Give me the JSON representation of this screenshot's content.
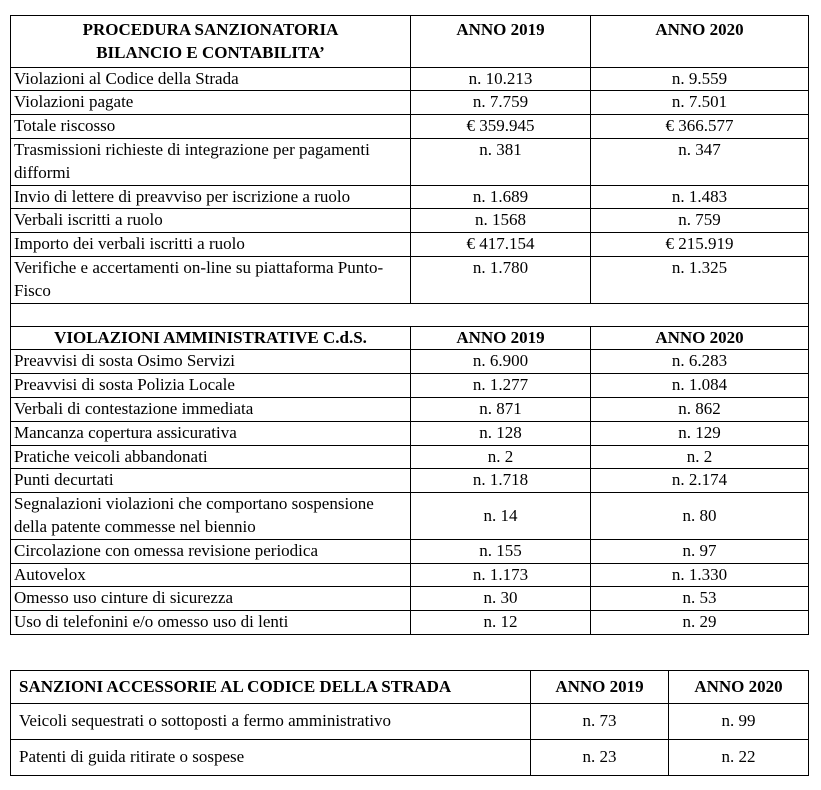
{
  "table1": {
    "sections": [
      {
        "header": [
          "PROCEDURA SANZIONATORIA\nBILANCIO E CONTABILITA’",
          "ANNO 2019",
          "ANNO 2020"
        ],
        "rows": [
          [
            "Violazioni al Codice della Strada",
            "n. 10.213",
            "n. 9.559"
          ],
          [
            "Violazioni pagate",
            "n. 7.759",
            "n. 7.501"
          ],
          [
            "Totale riscosso",
            "€ 359.945",
            "€ 366.577"
          ],
          [
            "Trasmissioni richieste di integrazione per pagamenti difformi",
            "n. 381",
            "n. 347"
          ],
          [
            "Invio di lettere di preavviso per iscrizione a ruolo",
            "n. 1.689",
            "n. 1.483"
          ],
          [
            "Verbali iscritti a ruolo",
            "n. 1568",
            "n. 759"
          ],
          [
            "Importo dei verbali iscritti a ruolo",
            "€ 417.154",
            "€ 215.919"
          ],
          [
            "Verifiche e accertamenti on-line su piattaforma Punto-Fisco",
            "n. 1.780",
            "n. 1.325"
          ]
        ]
      },
      {
        "header": [
          "VIOLAZIONI AMMINISTRATIVE C.d.S.",
          "ANNO 2019",
          "ANNO 2020"
        ],
        "rows": [
          [
            "Preavvisi di sosta Osimo Servizi",
            "n. 6.900",
            "n. 6.283"
          ],
          [
            "Preavvisi di sosta Polizia Locale",
            "n. 1.277",
            "n. 1.084"
          ],
          [
            "Verbali di contestazione immediata",
            "n. 871",
            "n. 862"
          ],
          [
            "Mancanza copertura assicurativa",
            "n. 128",
            "n. 129"
          ],
          [
            "Pratiche veicoli abbandonati",
            "n. 2",
            "n. 2"
          ],
          [
            "Punti decurtati",
            "n. 1.718",
            "n. 2.174"
          ],
          [
            "Segnalazioni violazioni che comportano sospensione della patente commesse nel biennio",
            "n. 14",
            "n. 80"
          ],
          [
            "Circolazione con omessa revisione periodica",
            "n. 155",
            "n. 97"
          ],
          [
            "Autovelox",
            "n. 1.173",
            "n. 1.330"
          ],
          [
            "Omesso uso cinture di sicurezza",
            "n. 30",
            "n. 53"
          ],
          [
            "Uso di telefonini e/o omesso uso di lenti",
            "n. 12",
            "n. 29"
          ]
        ]
      }
    ]
  },
  "table2": {
    "header": [
      "SANZIONI ACCESSORIE AL CODICE DELLA STRADA",
      "ANNO 2019",
      "ANNO 2020"
    ],
    "rows": [
      [
        "Veicoli sequestrati o sottoposti a fermo amministrativo",
        "n. 73",
        "n. 99"
      ],
      [
        "Patenti di guida ritirate o sospese",
        "n. 23",
        "n. 22"
      ]
    ]
  }
}
